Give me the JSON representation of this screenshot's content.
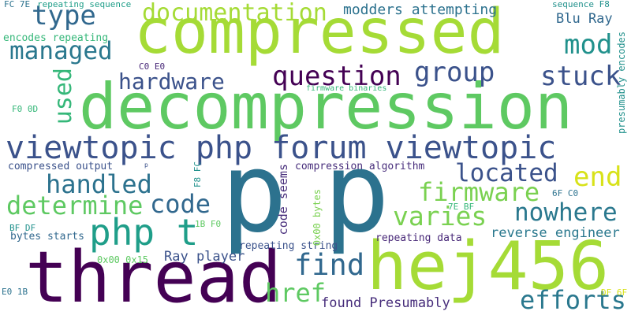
{
  "background_color": "#ffffff",
  "words": [
    {
      "text": "compressed",
      "color": "#a5db36"
    },
    {
      "text": "decompression",
      "color": "#5ec962"
    },
    {
      "text": "viewtopic php forum viewtopic",
      "color": "#3b528b"
    },
    {
      "text": "p",
      "color": "#2c728e"
    },
    {
      "text": "p",
      "color": "#2c728e"
    },
    {
      "text": "thread",
      "color": "#440154"
    },
    {
      "text": "hej456",
      "color": "#a5db36"
    },
    {
      "text": "documentation",
      "color": "#a5db36"
    },
    {
      "text": "type",
      "color": "#31688e"
    },
    {
      "text": "managed",
      "color": "#2a788e"
    },
    {
      "text": "hardware",
      "color": "#3b528b"
    },
    {
      "text": "question",
      "color": "#440154"
    },
    {
      "text": "group",
      "color": "#3b528b"
    },
    {
      "text": "stuck",
      "color": "#3b528b"
    },
    {
      "text": "mod",
      "color": "#21918c"
    },
    {
      "text": "modders attempting",
      "color": "#2c728e"
    },
    {
      "text": "Blu Ray",
      "color": "#31688e"
    },
    {
      "text": "used",
      "color": "#35b779"
    },
    {
      "text": "php t",
      "color": "#1f9e89"
    },
    {
      "text": "handled",
      "color": "#2c728e"
    },
    {
      "text": "determine",
      "color": "#5ec962"
    },
    {
      "text": "code",
      "color": "#31688e"
    },
    {
      "text": "located",
      "color": "#3b528b"
    },
    {
      "text": "end",
      "color": "#d8e219"
    },
    {
      "text": "firmware",
      "color": "#7ad151"
    },
    {
      "text": "varies",
      "color": "#7ad151"
    },
    {
      "text": "nowhere",
      "color": "#2a788e"
    },
    {
      "text": "find",
      "color": "#31688e"
    },
    {
      "text": "code seems",
      "color": "#472d7b"
    },
    {
      "text": "href",
      "color": "#5ec962"
    },
    {
      "text": "efforts",
      "color": "#2a788e"
    },
    {
      "text": "reverse engineer",
      "color": "#2a788e"
    },
    {
      "text": "Ray player",
      "color": "#3b528b"
    },
    {
      "text": "found Presumably",
      "color": "#472d7b"
    },
    {
      "text": "repeating data",
      "color": "#482878"
    },
    {
      "text": "repeating string",
      "color": "#3b528b"
    },
    {
      "text": "compression algorithm",
      "color": "#472d7b"
    },
    {
      "text": "compressed output",
      "color": "#3b528b"
    },
    {
      "text": "encodes repeating",
      "color": "#35b779"
    },
    {
      "text": "FC 7E",
      "color": "#2c728e"
    },
    {
      "text": "repeating sequence",
      "color": "#1f9e89"
    },
    {
      "text": "sequence F8",
      "color": "#21918c"
    },
    {
      "text": "presumably encodes",
      "color": "#21918c"
    },
    {
      "text": "firmware binaries",
      "color": "#35b779"
    },
    {
      "text": "C0 E0",
      "color": "#482878"
    },
    {
      "text": "F0 0D",
      "color": "#35b779"
    },
    {
      "text": "F8 FC",
      "color": "#21918c"
    },
    {
      "text": "0x00 bytes",
      "color": "#7ad151"
    },
    {
      "text": "7E BF",
      "color": "#35b779"
    },
    {
      "text": "6F C0",
      "color": "#2c728e"
    },
    {
      "text": "BF DF",
      "color": "#21918c"
    },
    {
      "text": "bytes starts",
      "color": "#31688e"
    },
    {
      "text": "1B F0",
      "color": "#5ec962"
    },
    {
      "text": "0x00 0x15",
      "color": "#5ec962"
    },
    {
      "text": "E0 1B",
      "color": "#2c728e"
    },
    {
      "text": "DF 6F",
      "color": "#d8e219"
    },
    {
      "text": "p",
      "color": "#3b528b"
    }
  ]
}
